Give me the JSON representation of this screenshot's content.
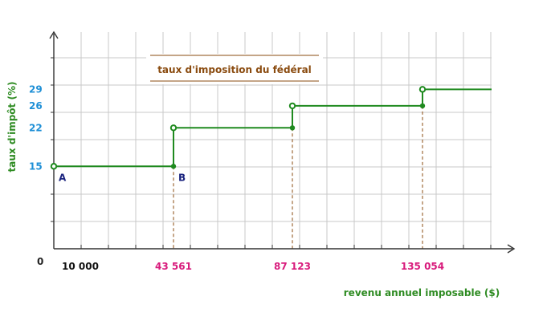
{
  "chart_data": {
    "type": "line",
    "title": "taux d'imposition du fédéral",
    "xlabel": "revenu annuel imposable ($)",
    "ylabel": "taux d'impôt (%)",
    "origin_label": "0",
    "x_tick_labels": [
      "10 000",
      "43 561",
      "87 123",
      "135 054"
    ],
    "y_tick_labels": [
      "15",
      "22",
      "26",
      "29"
    ],
    "xlim": [
      0,
      160000
    ],
    "ylim": [
      0,
      34
    ],
    "grid": true,
    "series": [
      {
        "steps": [
          {
            "x_start": 0,
            "x_end": 43561,
            "rate": 15,
            "start_open": true,
            "end_closed": true
          },
          {
            "x_start": 43561,
            "x_end": 87123,
            "rate": 22,
            "start_open": true,
            "end_closed": true
          },
          {
            "x_start": 87123,
            "x_end": 135054,
            "rate": 26,
            "start_open": true,
            "end_closed": true
          },
          {
            "x_start": 135054,
            "x_end": 160000,
            "rate": 29,
            "start_open": true,
            "end_closed": false
          }
        ]
      }
    ],
    "point_labels": [
      {
        "text": "A",
        "x": 0,
        "y": 15
      },
      {
        "text": "B",
        "x": 43561,
        "y": 15
      }
    ],
    "colors": {
      "line": "#1f8a1f",
      "dashes": "#8a4b0f",
      "y_ticks": "#1e8fd6",
      "x_ticks": "#d81b7c",
      "axis_titles": "#2e8b22",
      "title": "#8a4b0f",
      "points": "#1a237e"
    }
  }
}
